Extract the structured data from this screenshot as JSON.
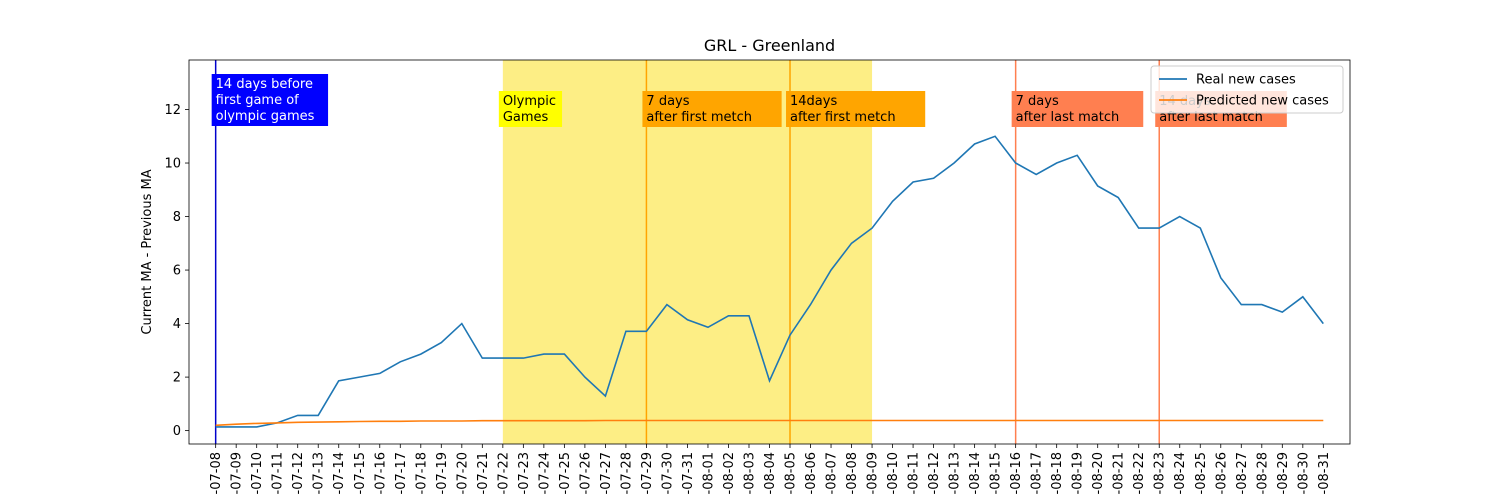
{
  "chart_data": {
    "type": "line",
    "title": "GRL - Greenland",
    "xlabel": "",
    "ylabel": "Current MA - Previous MA",
    "ylim": [
      -0.5,
      13.85
    ],
    "yticks": [
      0,
      2,
      4,
      6,
      8,
      10,
      12
    ],
    "grid": false,
    "legend_position": "top-right",
    "x": [
      "2021-07-08",
      "2021-07-09",
      "2021-07-10",
      "2021-07-11",
      "2021-07-12",
      "2021-07-13",
      "2021-07-14",
      "2021-07-15",
      "2021-07-16",
      "2021-07-17",
      "2021-07-18",
      "2021-07-19",
      "2021-07-20",
      "2021-07-21",
      "2021-07-22",
      "2021-07-23",
      "2021-07-24",
      "2021-07-25",
      "2021-07-26",
      "2021-07-27",
      "2021-07-28",
      "2021-07-29",
      "2021-07-30",
      "2021-07-31",
      "2021-08-01",
      "2021-08-02",
      "2021-08-03",
      "2021-08-04",
      "2021-08-05",
      "2021-08-06",
      "2021-08-07",
      "2021-08-08",
      "2021-08-09",
      "2021-08-10",
      "2021-08-11",
      "2021-08-12",
      "2021-08-13",
      "2021-08-14",
      "2021-08-15",
      "2021-08-16",
      "2021-08-17",
      "2021-08-18",
      "2021-08-19",
      "2021-08-20",
      "2021-08-21",
      "2021-08-22",
      "2021-08-23",
      "2021-08-24",
      "2021-08-25",
      "2021-08-26",
      "2021-08-27",
      "2021-08-28",
      "2021-08-29",
      "2021-08-30",
      "2021-08-31"
    ],
    "x_tick_labels": [
      "-07-08",
      "-07-09",
      "-07-10",
      "-07-11",
      "-07-12",
      "-07-13",
      "-07-14",
      "-07-15",
      "-07-16",
      "-07-17",
      "-07-18",
      "-07-19",
      "-07-20",
      "-07-21",
      "-07-22",
      "-07-23",
      "-07-24",
      "-07-25",
      "-07-26",
      "-07-27",
      "-07-28",
      "-07-29",
      "-07-30",
      "-07-31",
      "-08-01",
      "-08-02",
      "-08-03",
      "-08-04",
      "-08-05",
      "-08-06",
      "-08-07",
      "-08-08",
      "-08-09",
      "-08-10",
      "-08-11",
      "-08-12",
      "-08-13",
      "-08-14",
      "-08-15",
      "-08-16",
      "-08-17",
      "-08-18",
      "-08-19",
      "-08-20",
      "-08-21",
      "-08-22",
      "-08-23",
      "-08-24",
      "-08-25",
      "-08-26",
      "-08-27",
      "-08-28",
      "-08-29",
      "-08-30",
      "-08-31"
    ],
    "series": [
      {
        "name": "Real new cases",
        "color": "#1f77b4",
        "values": [
          0.14,
          0.14,
          0.14,
          0.29,
          0.57,
          0.57,
          1.86,
          2.0,
          2.14,
          2.57,
          2.86,
          3.29,
          4.0,
          2.71,
          2.71,
          2.71,
          2.86,
          2.86,
          2.0,
          1.29,
          3.71,
          3.71,
          4.71,
          4.14,
          3.86,
          4.29,
          4.29,
          1.86,
          3.57,
          4.71,
          6.0,
          7.0,
          7.57,
          8.57,
          9.29,
          9.43,
          10.0,
          10.71,
          11.0,
          10.0,
          9.57,
          10.0,
          10.29,
          9.14,
          8.71,
          7.57,
          7.57,
          8.0,
          7.57,
          5.71,
          4.71,
          4.71,
          4.43,
          5.0,
          4.0
        ]
      },
      {
        "name": "Predicted new cases",
        "color": "#ff7f0e",
        "values": [
          0.2,
          0.24,
          0.27,
          0.29,
          0.31,
          0.32,
          0.33,
          0.34,
          0.35,
          0.35,
          0.36,
          0.36,
          0.36,
          0.37,
          0.37,
          0.37,
          0.37,
          0.37,
          0.37,
          0.38,
          0.38,
          0.38,
          0.38,
          0.38,
          0.38,
          0.38,
          0.38,
          0.38,
          0.38,
          0.38,
          0.38,
          0.38,
          0.38,
          0.38,
          0.38,
          0.38,
          0.38,
          0.38,
          0.38,
          0.38,
          0.38,
          0.38,
          0.38,
          0.38,
          0.38,
          0.38,
          0.38,
          0.38,
          0.38,
          0.38,
          0.38,
          0.38,
          0.38,
          0.38,
          0.38
        ]
      }
    ],
    "shaded_span": {
      "start": "2021-07-22",
      "end": "2021-08-09",
      "color": "#fdee85"
    },
    "markers": [
      {
        "date": "2021-07-08",
        "line_color": "#0000cc",
        "box_color": "#0000ff",
        "text_color": "#ffffff",
        "lines": [
          "14 days before",
          "first game of",
          "olympic games"
        ]
      },
      {
        "date": "2021-07-22",
        "line_color": null,
        "box_color": "#ffff00",
        "text_color": "#000000",
        "lines": [
          "Olympic",
          "Games"
        ]
      },
      {
        "date": "2021-07-29",
        "line_color": "#ffa500",
        "box_color": "#ffa500",
        "text_color": "#000000",
        "lines": [
          "7 days",
          "after first metch"
        ]
      },
      {
        "date": "2021-08-05",
        "line_color": "#ffa500",
        "box_color": "#ffa500",
        "text_color": "#000000",
        "lines": [
          "14days",
          "after first metch"
        ]
      },
      {
        "date": "2021-08-16",
        "line_color": "#ff7f50",
        "box_color": "#ff7f50",
        "text_color": "#000000",
        "lines": [
          "7 days",
          "after last match"
        ]
      },
      {
        "date": "2021-08-23",
        "line_color": "#ff7f50",
        "box_color": "#ff7f50",
        "text_color": "#000000",
        "lines": [
          "14 days",
          "after last match"
        ]
      }
    ]
  }
}
